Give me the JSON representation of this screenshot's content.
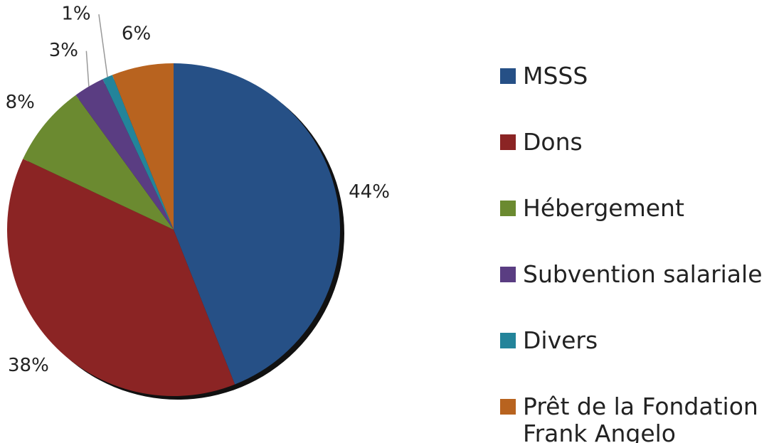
{
  "chart_data": {
    "type": "pie",
    "categories": [
      "MSSS",
      "Dons",
      "Hébergement",
      "Subvention salariale",
      "Divers",
      "Prêt de la Fondation Frank Angelo"
    ],
    "values": [
      44,
      38,
      8,
      3,
      1,
      6
    ],
    "value_labels": [
      "44%",
      "38%",
      "8%",
      "3%",
      "1%",
      "6%"
    ],
    "colors": [
      "#265086",
      "#8b2424",
      "#6b8a30",
      "#5a3d82",
      "#23849a",
      "#b8631f"
    ],
    "legend": "right"
  }
}
